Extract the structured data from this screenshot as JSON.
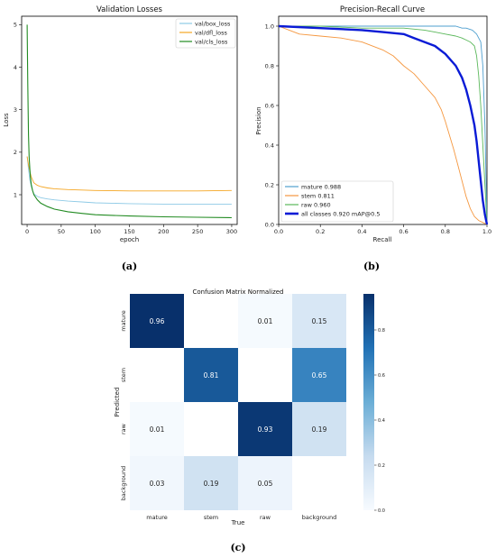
{
  "charts": {
    "a": {
      "panel_label": "(a)",
      "title": "Validation Losses",
      "xlabel": "epoch",
      "ylabel": "Loss",
      "xticks": [
        "0",
        "50",
        "100",
        "150",
        "200",
        "250",
        "300"
      ],
      "yticks": [
        "1",
        "2",
        "3",
        "4",
        "5"
      ],
      "legend": [
        "val/box_loss",
        "val/dfl_loss",
        "val/cls_loss"
      ]
    },
    "b": {
      "panel_label": "(b)",
      "title": "Precision-Recall Curve",
      "xlabel": "Recall",
      "ylabel": "Precision",
      "xticks": [
        "0.0",
        "0.2",
        "0.4",
        "0.6",
        "0.8",
        "1.0"
      ],
      "yticks": [
        "0.0",
        "0.2",
        "0.4",
        "0.6",
        "0.8",
        "1.0"
      ],
      "legend": [
        "mature 0.988",
        "stem 0.811",
        "raw 0.960",
        "all classes 0.920 mAP@0.5"
      ]
    },
    "c": {
      "panel_label": "(c)",
      "title": "Confusion Matrix Normalized",
      "xlabel": "True",
      "ylabel": "Predicted",
      "xticks": [
        "mature",
        "stem",
        "raw",
        "background"
      ],
      "yticks": [
        "mature",
        "stem",
        "raw",
        "background"
      ],
      "cbar_ticks": [
        "0.8",
        "0.6",
        "0.4",
        "0.2",
        "0.0"
      ],
      "cell_text": [
        [
          "0.96",
          "",
          "0.01",
          "0.15"
        ],
        [
          "",
          "0.81",
          "",
          "0.65"
        ],
        [
          "0.01",
          "",
          "0.93",
          "0.19"
        ],
        [
          "0.03",
          "0.19",
          "0.05",
          ""
        ]
      ]
    }
  },
  "chart_data": [
    {
      "type": "line",
      "title": "Validation Losses",
      "xlabel": "epoch",
      "ylabel": "Loss",
      "xlim": [
        -8,
        308
      ],
      "ylim": [
        0.3,
        5.2
      ],
      "series": [
        {
          "name": "val/box_loss",
          "color": "#8ecae6",
          "x": [
            0,
            2,
            4,
            6,
            8,
            10,
            15,
            20,
            30,
            40,
            60,
            80,
            100,
            150,
            200,
            250,
            300
          ],
          "y": [
            1.9,
            1.6,
            1.35,
            1.2,
            1.1,
            1.02,
            0.96,
            0.93,
            0.9,
            0.88,
            0.85,
            0.83,
            0.81,
            0.79,
            0.78,
            0.78,
            0.78
          ]
        },
        {
          "name": "val/dfl_loss",
          "color": "#f5a623",
          "x": [
            0,
            2,
            4,
            6,
            8,
            10,
            15,
            20,
            30,
            40,
            60,
            80,
            100,
            150,
            200,
            250,
            300
          ],
          "y": [
            1.9,
            1.7,
            1.55,
            1.42,
            1.35,
            1.28,
            1.22,
            1.19,
            1.16,
            1.14,
            1.12,
            1.11,
            1.1,
            1.09,
            1.09,
            1.09,
            1.1
          ]
        },
        {
          "name": "val/cls_loss",
          "color": "#228b22",
          "x": [
            0,
            1,
            2,
            3,
            4,
            5,
            6,
            8,
            10,
            15,
            20,
            30,
            40,
            60,
            80,
            100,
            150,
            200,
            250,
            300
          ],
          "y": [
            5.0,
            3.6,
            2.4,
            1.9,
            1.6,
            1.4,
            1.25,
            1.1,
            1.0,
            0.88,
            0.8,
            0.72,
            0.66,
            0.6,
            0.56,
            0.53,
            0.5,
            0.48,
            0.47,
            0.46
          ]
        }
      ]
    },
    {
      "type": "line",
      "title": "Precision-Recall Curve",
      "xlabel": "Recall",
      "ylabel": "Precision",
      "xlim": [
        0,
        1
      ],
      "ylim": [
        0,
        1.05
      ],
      "series": [
        {
          "name": "mature 0.988",
          "color": "#4f9fcf",
          "x": [
            0,
            0.2,
            0.4,
            0.6,
            0.7,
            0.8,
            0.85,
            0.88,
            0.9,
            0.93,
            0.95,
            0.97,
            0.98,
            0.99,
            1.0
          ],
          "y": [
            1.0,
            1.0,
            1.0,
            1.0,
            1.0,
            1.0,
            1.0,
            0.99,
            0.99,
            0.98,
            0.96,
            0.92,
            0.8,
            0.5,
            0.0
          ]
        },
        {
          "name": "stem 0.811",
          "color": "#f5973f",
          "x": [
            0,
            0.05,
            0.1,
            0.2,
            0.3,
            0.4,
            0.5,
            0.55,
            0.6,
            0.65,
            0.7,
            0.75,
            0.78,
            0.8,
            0.82,
            0.84,
            0.86,
            0.88,
            0.9,
            0.92,
            0.94,
            0.96,
            0.98,
            1.0
          ],
          "y": [
            1.0,
            0.98,
            0.96,
            0.95,
            0.94,
            0.92,
            0.88,
            0.85,
            0.8,
            0.76,
            0.7,
            0.64,
            0.58,
            0.52,
            0.45,
            0.38,
            0.3,
            0.22,
            0.14,
            0.08,
            0.04,
            0.02,
            0.01,
            0.0
          ]
        },
        {
          "name": "raw 0.960",
          "color": "#5bb85b",
          "x": [
            0,
            0.2,
            0.4,
            0.5,
            0.6,
            0.7,
            0.75,
            0.8,
            0.85,
            0.88,
            0.9,
            0.92,
            0.94,
            0.95,
            0.96,
            0.97,
            0.98,
            0.99,
            1.0
          ],
          "y": [
            1.0,
            1.0,
            0.99,
            0.99,
            0.99,
            0.98,
            0.97,
            0.96,
            0.95,
            0.94,
            0.93,
            0.92,
            0.9,
            0.85,
            0.75,
            0.6,
            0.4,
            0.2,
            0.0
          ]
        },
        {
          "name": "all classes 0.920 mAP@0.5",
          "color": "#0a1bd6",
          "x": [
            0,
            0.2,
            0.4,
            0.5,
            0.6,
            0.65,
            0.7,
            0.75,
            0.8,
            0.85,
            0.88,
            0.9,
            0.92,
            0.94,
            0.95,
            0.96,
            0.97,
            0.98,
            0.99,
            1.0
          ],
          "y": [
            1.0,
            0.99,
            0.98,
            0.97,
            0.96,
            0.94,
            0.92,
            0.9,
            0.86,
            0.8,
            0.74,
            0.68,
            0.6,
            0.5,
            0.42,
            0.32,
            0.22,
            0.12,
            0.05,
            0.0
          ]
        }
      ]
    },
    {
      "type": "heatmap",
      "title": "Confusion Matrix Normalized",
      "xlabel": "True",
      "ylabel": "Predicted",
      "x_categories": [
        "mature",
        "stem",
        "raw",
        "background"
      ],
      "y_categories": [
        "mature",
        "stem",
        "raw",
        "background"
      ],
      "values": [
        [
          0.96,
          null,
          0.01,
          0.15
        ],
        [
          null,
          0.81,
          null,
          0.65
        ],
        [
          0.01,
          null,
          0.93,
          0.19
        ],
        [
          0.03,
          0.19,
          0.05,
          null
        ]
      ],
      "colorbar_range": [
        0,
        0.96
      ],
      "colormap": "Blues"
    }
  ]
}
